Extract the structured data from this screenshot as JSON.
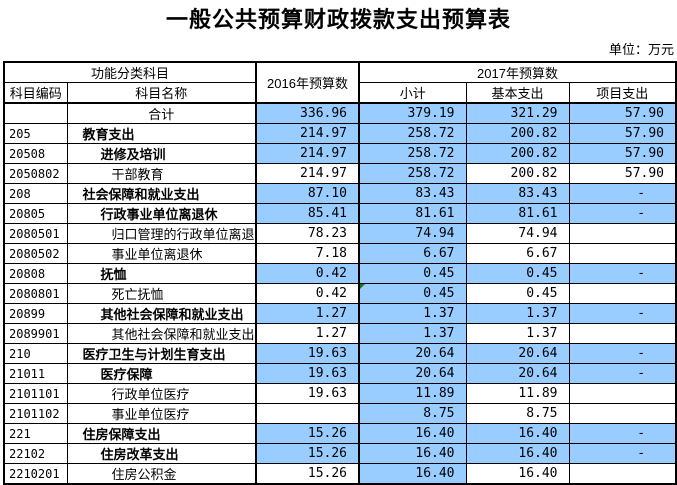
{
  "title": "一般公共预算财政拨款支出预算表",
  "unit_label": "单位：万元",
  "colors": {
    "highlight": "#99CCFF",
    "error_marker_green": "#157A15"
  },
  "table": {
    "headers": {
      "func_group": "功能分类科目",
      "code": "科目编码",
      "name": "科目名称",
      "y2016": "2016年预算数",
      "y2017": "2017年预算数",
      "subtotal": "小计",
      "basic": "基本支出",
      "project": "项目支出"
    },
    "rows": [
      {
        "code": "",
        "name": "合计",
        "indent": 0,
        "bold": false,
        "cells": [
          {
            "v": "336.96",
            "hl": true
          },
          {
            "v": "379.19",
            "hl": true
          },
          {
            "v": "321.29",
            "hl": true
          },
          {
            "v": "57.90",
            "hl": true
          }
        ]
      },
      {
        "code": "205",
        "name": "教育支出",
        "indent": 1,
        "bold": true,
        "cells": [
          {
            "v": "214.97",
            "hl": true
          },
          {
            "v": "258.72",
            "hl": true
          },
          {
            "v": "200.82",
            "hl": true
          },
          {
            "v": "57.90",
            "hl": true
          }
        ]
      },
      {
        "code": "20508",
        "name": "进修及培训",
        "indent": 2,
        "bold": true,
        "cells": [
          {
            "v": "214.97",
            "hl": true
          },
          {
            "v": "258.72",
            "hl": true
          },
          {
            "v": "200.82",
            "hl": true
          },
          {
            "v": "57.90",
            "hl": true
          }
        ]
      },
      {
        "code": "2050802",
        "name": "干部教育",
        "indent": 3,
        "bold": false,
        "cells": [
          {
            "v": "214.97",
            "hl": false
          },
          {
            "v": "258.72",
            "hl": true
          },
          {
            "v": "200.82",
            "hl": false
          },
          {
            "v": "57.90",
            "hl": false
          }
        ]
      },
      {
        "code": "208",
        "name": "社会保障和就业支出",
        "indent": 1,
        "bold": true,
        "cells": [
          {
            "v": "87.10",
            "hl": true
          },
          {
            "v": "83.43",
            "hl": true
          },
          {
            "v": "83.43",
            "hl": true
          },
          {
            "v": "-",
            "hl": true
          }
        ]
      },
      {
        "code": "20805",
        "name": "行政事业单位离退休",
        "indent": 2,
        "bold": true,
        "cells": [
          {
            "v": "85.41",
            "hl": true
          },
          {
            "v": "81.61",
            "hl": true
          },
          {
            "v": "81.61",
            "hl": true
          },
          {
            "v": "-",
            "hl": true
          }
        ]
      },
      {
        "code": "2080501",
        "name": "归口管理的行政单位离退",
        "indent": 3,
        "bold": false,
        "cells": [
          {
            "v": "78.23",
            "hl": false
          },
          {
            "v": "74.94",
            "hl": true
          },
          {
            "v": "74.94",
            "hl": false
          },
          {
            "v": "",
            "hl": false
          }
        ]
      },
      {
        "code": "2080502",
        "name": "事业单位离退休",
        "indent": 3,
        "bold": false,
        "cells": [
          {
            "v": "7.18",
            "hl": false
          },
          {
            "v": "6.67",
            "hl": true
          },
          {
            "v": "6.67",
            "hl": false
          },
          {
            "v": "",
            "hl": false
          }
        ]
      },
      {
        "code": "20808",
        "name": "抚恤",
        "indent": 2,
        "bold": true,
        "cells": [
          {
            "v": "0.42",
            "hl": true
          },
          {
            "v": "0.45",
            "hl": true
          },
          {
            "v": "0.45",
            "hl": true
          },
          {
            "v": "-",
            "hl": true
          }
        ]
      },
      {
        "code": "2080801",
        "name": "死亡抚恤",
        "indent": 3,
        "bold": false,
        "cells": [
          {
            "v": "0.42",
            "hl": false
          },
          {
            "v": "0.45",
            "hl": true,
            "marker": true
          },
          {
            "v": "0.45",
            "hl": false
          },
          {
            "v": "",
            "hl": false
          }
        ]
      },
      {
        "code": "20899",
        "name": "其他社会保障和就业支出",
        "indent": 2,
        "bold": true,
        "cells": [
          {
            "v": "1.27",
            "hl": true
          },
          {
            "v": "1.37",
            "hl": true
          },
          {
            "v": "1.37",
            "hl": true
          },
          {
            "v": "-",
            "hl": true
          }
        ]
      },
      {
        "code": "2089901",
        "name": "其他社会保障和就业支出",
        "indent": 3,
        "bold": false,
        "cells": [
          {
            "v": "1.27",
            "hl": false
          },
          {
            "v": "1.37",
            "hl": true
          },
          {
            "v": "1.37",
            "hl": false
          },
          {
            "v": "",
            "hl": false
          }
        ]
      },
      {
        "code": "210",
        "name": "医疗卫生与计划生育支出",
        "indent": 1,
        "bold": true,
        "cells": [
          {
            "v": "19.63",
            "hl": true
          },
          {
            "v": "20.64",
            "hl": true
          },
          {
            "v": "20.64",
            "hl": true
          },
          {
            "v": "-",
            "hl": true
          }
        ]
      },
      {
        "code": "21011",
        "name": "医疗保障",
        "indent": 2,
        "bold": true,
        "cells": [
          {
            "v": "19.63",
            "hl": true
          },
          {
            "v": "20.64",
            "hl": true
          },
          {
            "v": "20.64",
            "hl": true
          },
          {
            "v": "-",
            "hl": true
          }
        ]
      },
      {
        "code": "2101101",
        "name": "行政单位医疗",
        "indent": 3,
        "bold": false,
        "cells": [
          {
            "v": "19.63",
            "hl": false
          },
          {
            "v": "11.89",
            "hl": true
          },
          {
            "v": "11.89",
            "hl": false
          },
          {
            "v": "",
            "hl": false
          }
        ]
      },
      {
        "code": "2101102",
        "name": "事业单位医疗",
        "indent": 3,
        "bold": false,
        "cells": [
          {
            "v": "",
            "hl": false
          },
          {
            "v": "8.75",
            "hl": true
          },
          {
            "v": "8.75",
            "hl": false
          },
          {
            "v": "",
            "hl": false
          }
        ]
      },
      {
        "code": "221",
        "name": "住房保障支出",
        "indent": 1,
        "bold": true,
        "cells": [
          {
            "v": "15.26",
            "hl": true
          },
          {
            "v": "16.40",
            "hl": true
          },
          {
            "v": "16.40",
            "hl": true
          },
          {
            "v": "-",
            "hl": true
          }
        ]
      },
      {
        "code": "22102",
        "name": "住房改革支出",
        "indent": 2,
        "bold": true,
        "cells": [
          {
            "v": "15.26",
            "hl": true
          },
          {
            "v": "16.40",
            "hl": true
          },
          {
            "v": "16.40",
            "hl": true
          },
          {
            "v": "-",
            "hl": true
          }
        ]
      },
      {
        "code": "2210201",
        "name": "住房公积金",
        "indent": 3,
        "bold": false,
        "cells": [
          {
            "v": "15.26",
            "hl": false
          },
          {
            "v": "16.40",
            "hl": true
          },
          {
            "v": "16.40",
            "hl": false
          },
          {
            "v": "",
            "hl": false
          }
        ]
      }
    ]
  }
}
